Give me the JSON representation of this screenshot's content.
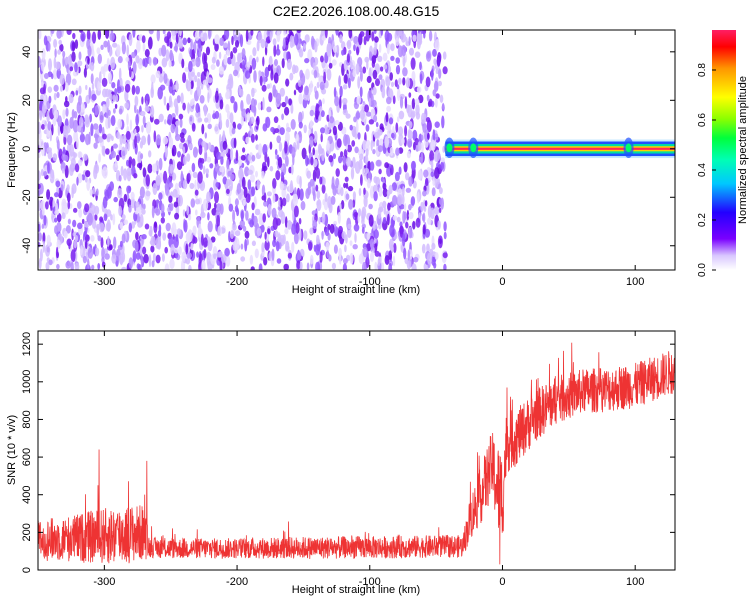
{
  "figure": {
    "title": "C2E2.2026.108.00.48.G15"
  },
  "chart_data": [
    {
      "type": "heatmap",
      "xlabel": "Height of straight line (km)",
      "ylabel": "Frequency (Hz)",
      "xlim": [
        -350,
        130
      ],
      "ylim": [
        -50,
        49
      ],
      "x_ticks": [
        -300,
        -200,
        -100,
        0,
        100
      ],
      "x_tick_labels": [
        "-300",
        "-200",
        "-100",
        "0",
        "100"
      ],
      "y_ticks": [
        -40,
        -20,
        0,
        20,
        40
      ],
      "y_tick_labels": [
        "-40",
        "-20",
        "0",
        "20",
        "40"
      ],
      "colorbar": {
        "label": "Normalized spectral amplitude",
        "range": [
          0.0,
          0.96
        ],
        "ticks": [
          0.0,
          0.2,
          0.4,
          0.6,
          0.8
        ],
        "tick_labels": [
          "0.0",
          "0.2",
          "0.4",
          "0.6",
          "0.8"
        ],
        "colormap": "rainbow"
      },
      "regions": [
        {
          "x_range": [
            -350,
            -43
          ],
          "description": "broadband noise",
          "amplitude_range": [
            0.0,
            0.15
          ]
        },
        {
          "x_range": [
            -43,
            130
          ],
          "frequency_hz": 0.0,
          "band_halfwidth_hz": 3,
          "peak_amplitude": 0.96
        }
      ],
      "grid": false
    },
    {
      "type": "line",
      "xlabel": "Height of straight line (km)",
      "ylabel": "SNR (10 * v/v)",
      "xlim": [
        -350,
        130
      ],
      "ylim": [
        0,
        1270
      ],
      "x_ticks": [
        -300,
        -200,
        -100,
        0,
        100
      ],
      "x_tick_labels": [
        "-300",
        "-200",
        "-100",
        "0",
        "100"
      ],
      "y_ticks": [
        0,
        200,
        400,
        600,
        800,
        1000,
        1200
      ],
      "y_tick_labels": [
        "0",
        "200",
        "400",
        "600",
        "800",
        "1000",
        "1200"
      ],
      "series": [
        {
          "color": "#ee3333",
          "x": [
            -350,
            -330,
            -310,
            -290,
            -270,
            -266,
            -250,
            -200,
            -150,
            -100,
            -50,
            -30,
            -24,
            -15,
            -8,
            -3,
            0,
            3,
            10,
            25,
            40,
            60,
            80,
            100,
            115,
            130
          ],
          "mean": [
            160,
            165,
            175,
            185,
            200,
            120,
            115,
            115,
            118,
            120,
            125,
            125,
            280,
            420,
            560,
            420,
            380,
            680,
            700,
            820,
            900,
            950,
            960,
            980,
            1020,
            1060
          ],
          "noise": [
            110,
            120,
            140,
            160,
            150,
            55,
            55,
            55,
            60,
            60,
            60,
            60,
            120,
            160,
            180,
            250,
            260,
            170,
            150,
            140,
            130,
            120,
            120,
            120,
            120,
            120
          ],
          "notable_peaks": [
            {
              "x": -304,
              "y": 640
            },
            {
              "x": -268,
              "y": 580
            },
            {
              "x": -2,
              "y": 30
            }
          ]
        }
      ],
      "grid": false
    }
  ],
  "colors": {
    "line": "#ee3333",
    "noise_dots": "#6a0ee6",
    "signal_core": "#ff2a55",
    "signal_edge": "#2050ff"
  }
}
